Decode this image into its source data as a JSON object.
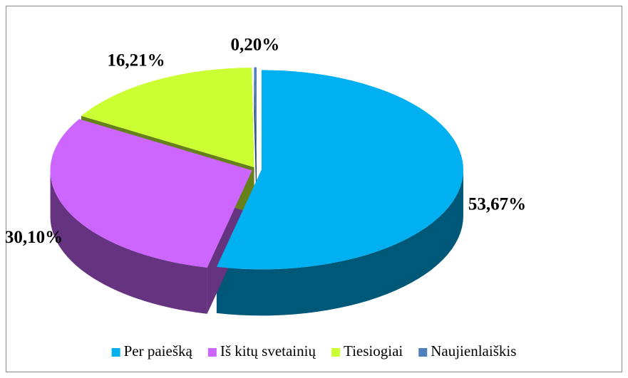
{
  "chart_data": {
    "type": "pie3d",
    "categories": [
      "Per paiešką",
      "Iš kitų svetainių",
      "Tiesiogiai",
      "Naujienlaiškis"
    ],
    "values": [
      53.67,
      30.1,
      16.21,
      0.2
    ],
    "value_labels": [
      "53,67%",
      "30,10%",
      "16,21%",
      "0,20%"
    ],
    "colors": [
      "#00b0f0",
      "#cc66ff",
      "#ccff33",
      "#4f81bd"
    ],
    "legend": "bottom"
  }
}
